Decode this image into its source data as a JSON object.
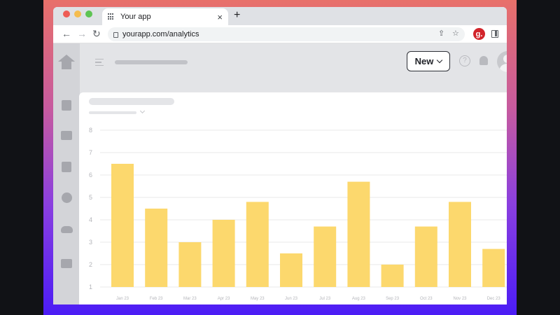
{
  "browser": {
    "tab_title": "Your app",
    "tab_close": "×",
    "new_tab": "+",
    "url": "yourapp.com/analytics",
    "extension_badge": "g."
  },
  "app": {
    "new_button_label": "New",
    "help_icon": "?"
  },
  "colors": {
    "bar": "#fcd86d",
    "grid": "#e8e8ea",
    "accent_gradient_top": "#e8706a",
    "accent_gradient_bottom": "#4b1cf5"
  },
  "chart_data": {
    "type": "bar",
    "categories": [
      "Jan 23",
      "Feb 23",
      "Mar 23",
      "Apr 23",
      "May 23",
      "Jun 23",
      "Jul 23",
      "Aug 23",
      "Sep 23",
      "Oct 23",
      "Nov 23",
      "Dec 23"
    ],
    "values": [
      6.5,
      4.5,
      3.0,
      4.0,
      4.8,
      2.5,
      3.7,
      5.7,
      2.0,
      3.7,
      4.8,
      2.7
    ],
    "y_ticks": [
      "1",
      "2",
      "3",
      "4",
      "5",
      "6",
      "7",
      "8"
    ],
    "ylim": [
      1,
      8
    ],
    "grid": true,
    "title": "",
    "xlabel": "",
    "ylabel": ""
  }
}
